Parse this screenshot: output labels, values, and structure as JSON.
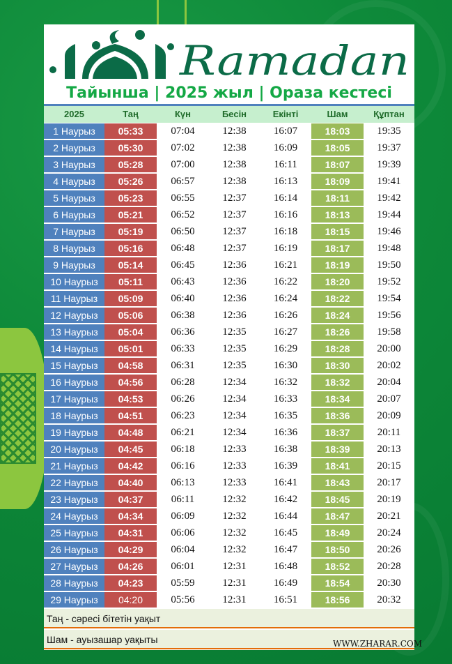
{
  "logo_text": "Ramadan",
  "title": "Тайынша | 2025 жыл | Ораза кестесі",
  "headers": [
    "2025",
    "Таң",
    "Күн",
    "Бесін",
    "Екінті",
    "Шам",
    "Құптан"
  ],
  "rows": [
    [
      "1 Наурыз",
      "05:33",
      "07:04",
      "12:38",
      "16:07",
      "18:03",
      "19:35"
    ],
    [
      "2 Наурыз",
      "05:30",
      "07:02",
      "12:38",
      "16:09",
      "18:05",
      "19:37"
    ],
    [
      "3 Наурыз",
      "05:28",
      "07:00",
      "12:38",
      "16:11",
      "18:07",
      "19:39"
    ],
    [
      "4 Наурыз",
      "05:26",
      "06:57",
      "12:38",
      "16:13",
      "18:09",
      "19:41"
    ],
    [
      "5 Наурыз",
      "05:23",
      "06:55",
      "12:37",
      "16:14",
      "18:11",
      "19:42"
    ],
    [
      "6 Наурыз",
      "05:21",
      "06:52",
      "12:37",
      "16:16",
      "18:13",
      "19:44"
    ],
    [
      "7 Наурыз",
      "05:19",
      "06:50",
      "12:37",
      "16:18",
      "18:15",
      "19:46"
    ],
    [
      "8 Наурыз",
      "05:16",
      "06:48",
      "12:37",
      "16:19",
      "18:17",
      "19:48"
    ],
    [
      "9 Наурыз",
      "05:14",
      "06:45",
      "12:36",
      "16:21",
      "18:19",
      "19:50"
    ],
    [
      "10 Наурыз",
      "05:11",
      "06:43",
      "12:36",
      "16:22",
      "18:20",
      "19:52"
    ],
    [
      "11 Наурыз",
      "05:09",
      "06:40",
      "12:36",
      "16:24",
      "18:22",
      "19:54"
    ],
    [
      "12 Наурыз",
      "05:06",
      "06:38",
      "12:36",
      "16:26",
      "18:24",
      "19:56"
    ],
    [
      "13 Наурыз",
      "05:04",
      "06:36",
      "12:35",
      "16:27",
      "18:26",
      "19:58"
    ],
    [
      "14 Наурыз",
      "05:01",
      "06:33",
      "12:35",
      "16:29",
      "18:28",
      "20:00"
    ],
    [
      "15 Наурыз",
      "04:58",
      "06:31",
      "12:35",
      "16:30",
      "18:30",
      "20:02"
    ],
    [
      "16 Наурыз",
      "04:56",
      "06:28",
      "12:34",
      "16:32",
      "18:32",
      "20:04"
    ],
    [
      "17 Наурыз",
      "04:53",
      "06:26",
      "12:34",
      "16:33",
      "18:34",
      "20:07"
    ],
    [
      "18 Наурыз",
      "04:51",
      "06:23",
      "12:34",
      "16:35",
      "18:36",
      "20:09"
    ],
    [
      "19 Наурыз",
      "04:48",
      "06:21",
      "12:34",
      "16:36",
      "18:37",
      "20:11"
    ],
    [
      "20 Наурыз",
      "04:45",
      "06:18",
      "12:33",
      "16:38",
      "18:39",
      "20:13"
    ],
    [
      "21 Наурыз",
      "04:42",
      "06:16",
      "12:33",
      "16:39",
      "18:41",
      "20:15"
    ],
    [
      "22 Наурыз",
      "04:40",
      "06:13",
      "12:33",
      "16:41",
      "18:43",
      "20:17"
    ],
    [
      "23 Наурыз",
      "04:37",
      "06:11",
      "12:32",
      "16:42",
      "18:45",
      "20:19"
    ],
    [
      "24 Наурыз",
      "04:34",
      "06:09",
      "12:32",
      "16:44",
      "18:47",
      "20:21"
    ],
    [
      "25 Наурыз",
      "04:31",
      "06:06",
      "12:32",
      "16:45",
      "18:49",
      "20:24"
    ],
    [
      "26 Наурыз",
      "04:29",
      "06:04",
      "12:32",
      "16:47",
      "18:50",
      "20:26"
    ],
    [
      "27 Наурыз",
      "04:26",
      "06:01",
      "12:31",
      "16:48",
      "18:52",
      "20:28"
    ],
    [
      "28 Наурыз",
      "04:23",
      "05:59",
      "12:31",
      "16:49",
      "18:54",
      "20:30"
    ],
    [
      "29 Наурыз",
      "04:20",
      "05:56",
      "12:31",
      "16:51",
      "18:56",
      "20:32"
    ]
  ],
  "legend": [
    "Таң - сәресі бітетін уақыт",
    "Шам - ауызашар уақыты"
  ],
  "website": "WWW.ZHARAR.COM",
  "colors": {
    "date": "#4f81bd",
    "fajr": "#c0504d",
    "maghrib": "#9bbb59",
    "header": "#c6efce",
    "title": "#14a845",
    "logo": "#0b6b47"
  }
}
